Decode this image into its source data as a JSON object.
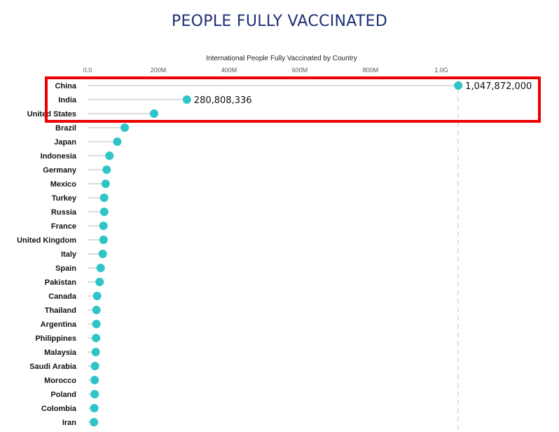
{
  "page": {
    "title": "PEOPLE FULLY VACCINATED"
  },
  "colors": {
    "title": "#1e2f74",
    "dot": "#2ec5c8",
    "stem": "#c8c8c8",
    "reference_line": "#d8d8d8",
    "highlight_box": "#ee0000"
  },
  "chart_data": {
    "type": "lollipop",
    "title": "International People Fully Vaccinated by Country",
    "orientation": "horizontal",
    "x_axis_position": "top",
    "xlim": [
      0,
      1100000000
    ],
    "ticks": [
      {
        "value": 0,
        "label": "0.0"
      },
      {
        "value": 200000000,
        "label": "200M"
      },
      {
        "value": 400000000,
        "label": "400M"
      },
      {
        "value": 600000000,
        "label": "600M"
      },
      {
        "value": 800000000,
        "label": "800M"
      },
      {
        "value": 1000000000,
        "label": "1.0G"
      }
    ],
    "reference_line_value": 1047872000,
    "categories": [
      "China",
      "India",
      "United States",
      "Brazil",
      "Japan",
      "Indonesia",
      "Germany",
      "Mexico",
      "Turkey",
      "Russia",
      "France",
      "United Kingdom",
      "Italy",
      "Spain",
      "Pakistan",
      "Canada",
      "Thailand",
      "Argentina",
      "Philippines",
      "Malaysia",
      "Saudi Arabia",
      "Morocco",
      "Poland",
      "Colombia",
      "Iran"
    ],
    "values": [
      1047872000,
      280808336,
      188000000,
      105000000,
      84000000,
      62000000,
      54000000,
      51000000,
      47000000,
      47000000,
      45000000,
      45000000,
      43000000,
      37000000,
      34000000,
      27000000,
      25000000,
      25000000,
      24000000,
      23000000,
      21000000,
      20000000,
      20000000,
      19000000,
      18000000
    ],
    "data_labels": [
      {
        "category": "China",
        "text": "1,047,872,000"
      },
      {
        "category": "India",
        "text": "280,808,336"
      }
    ],
    "highlighted_categories": [
      "China",
      "India"
    ],
    "grid": false,
    "legend": "none"
  }
}
